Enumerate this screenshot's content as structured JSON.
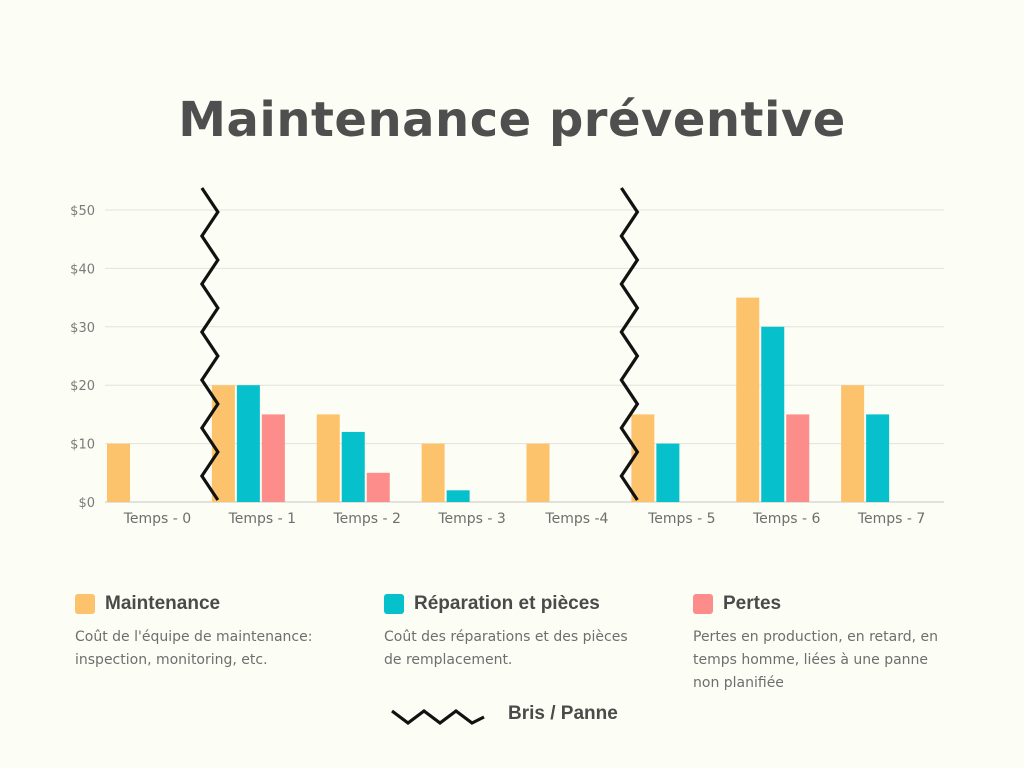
{
  "chart_data": {
    "type": "bar",
    "title": "Maintenance préventive",
    "categories": [
      "Temps - 0",
      "Temps - 1",
      "Temps - 2",
      "Temps - 3",
      "Temps -4",
      "Temps - 5",
      "Temps - 6",
      "Temps - 7"
    ],
    "series": [
      {
        "name": "Maintenance",
        "color": "#fdc36c",
        "values": [
          10,
          20,
          15,
          10,
          10,
          15,
          35,
          20
        ]
      },
      {
        "name": "Réparation et pièces",
        "color": "#06c0cc",
        "values": [
          0,
          20,
          12,
          2,
          0,
          10,
          30,
          15
        ]
      },
      {
        "name": "Pertes",
        "color": "#fc8d8b",
        "values": [
          0,
          15,
          5,
          0,
          0,
          0,
          15,
          0
        ]
      }
    ],
    "yticks": [
      0,
      10,
      20,
      30,
      40,
      50
    ],
    "ytick_labels": [
      "$0",
      "$10",
      "$20",
      "$30",
      "$40",
      "$50"
    ],
    "ylim": [
      0,
      50
    ],
    "grid": true,
    "xlabel": "",
    "ylabel": "",
    "breakdown_after_categories": [
      "Temps - 0",
      "Temps -4"
    ]
  },
  "legend": [
    {
      "name": "Maintenance",
      "color": "#fdc36c",
      "description": "Coût de l'équipe de maintenance: inspection, monitoring, etc."
    },
    {
      "name": "Réparation et pièces",
      "color": "#06c0cc",
      "description": "Coût des réparations et des pièces de remplacement."
    },
    {
      "name": "Pertes",
      "color": "#fc8d8b",
      "description": "Pertes en production, en retard, en temps homme, liées à une panne non planifiée"
    }
  ],
  "break_legend": {
    "label": "Bris / Panne",
    "icon": "zigzag-line-icon",
    "color": "#111111"
  }
}
